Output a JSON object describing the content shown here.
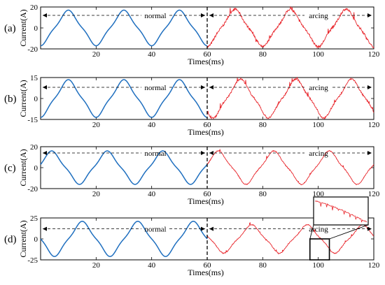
{
  "chart_data": [
    {
      "type": "line",
      "panel_label": "(a)",
      "xlabel": "Times(ms)",
      "ylabel": "Current(A)",
      "xlim": [
        0,
        120
      ],
      "ylim": [
        -20,
        20
      ],
      "xticks": [
        20,
        40,
        60,
        80,
        100,
        120
      ],
      "yticks": [
        -20,
        0,
        20
      ],
      "divider_x": 60,
      "series": [
        {
          "color": "#1f6fbf",
          "x_range": [
            0,
            60
          ],
          "amplitude": 17,
          "period": 20,
          "peak_at": 10,
          "noise": 0
        },
        {
          "color": "#e8242a",
          "x_range": [
            60,
            120
          ],
          "amplitude": 18,
          "period": 20,
          "peak_at": 70,
          "noise": 2.2
        }
      ],
      "annotations": [
        {
          "text": "normal",
          "x_from": 0,
          "x_to": 60,
          "y": 12
        },
        {
          "text": "arcing",
          "x_from": 60,
          "x_to": 120,
          "y": 12
        }
      ]
    },
    {
      "type": "line",
      "panel_label": "(b)",
      "xlabel": "Times(ms)",
      "ylabel": "Current(A)",
      "xlim": [
        0,
        120
      ],
      "ylim": [
        -15,
        15
      ],
      "xticks": [
        20,
        40,
        60,
        80,
        100,
        120
      ],
      "yticks": [
        -15,
        0,
        15
      ],
      "divider_x": 60,
      "series": [
        {
          "color": "#1f6fbf",
          "x_range": [
            0,
            60
          ],
          "amplitude": 13.5,
          "period": 20,
          "peak_at": 10,
          "noise": 0
        },
        {
          "color": "#e8242a",
          "x_range": [
            60,
            120
          ],
          "amplitude": 14,
          "period": 20,
          "peak_at": 72,
          "noise": 1.2
        }
      ],
      "annotations": [
        {
          "text": "normal",
          "x_from": 0,
          "x_to": 60,
          "y": 8
        },
        {
          "text": "arcing",
          "x_from": 60,
          "x_to": 120,
          "y": 8
        }
      ]
    },
    {
      "type": "line",
      "panel_label": "(c)",
      "xlabel": "Times(ms)",
      "ylabel": "Current(A)",
      "xlim": [
        0,
        120
      ],
      "ylim": [
        -20,
        20
      ],
      "xticks": [
        20,
        40,
        60,
        80,
        100,
        120
      ],
      "yticks": [
        -20,
        0,
        20
      ],
      "divider_x": 60,
      "series": [
        {
          "color": "#1f6fbf",
          "x_range": [
            0,
            60
          ],
          "amplitude": 16,
          "period": 20,
          "peak_at": 4,
          "noise": 0
        },
        {
          "color": "#e8242a",
          "x_range": [
            60,
            120
          ],
          "amplitude": 16,
          "period": 20,
          "peak_at": 64,
          "noise": 0.9
        }
      ],
      "annotations": [
        {
          "text": "normal",
          "x_from": 0,
          "x_to": 60,
          "y": 14
        },
        {
          "text": "arcing",
          "x_from": 60,
          "x_to": 120,
          "y": 14
        }
      ]
    },
    {
      "type": "line",
      "panel_label": "(d)",
      "xlabel": "Times(ms)",
      "ylabel": "Current(A)",
      "xlim": [
        0,
        120
      ],
      "ylim": [
        -25,
        25
      ],
      "xticks": [
        20,
        40,
        60,
        80,
        100,
        120
      ],
      "yticks": [
        -25,
        0,
        25
      ],
      "divider_x": 60,
      "series": [
        {
          "color": "#1f6fbf",
          "x_range": [
            0,
            60
          ],
          "amplitude": 21,
          "period": 20,
          "peak_at": 15,
          "noise": 0
        },
        {
          "color": "#e8242a",
          "x_range": [
            60,
            120
          ],
          "amplitude": 17,
          "period": 20,
          "peak_at": 76,
          "noise": 1.0
        }
      ],
      "annotations": [
        {
          "text": "normal",
          "x_from": 0,
          "x_to": 60,
          "y": 12
        },
        {
          "text": "arcing",
          "x_from": 60,
          "x_to": 120,
          "y": 12
        }
      ],
      "inset": {
        "zoom_x_range": [
          97,
          104
        ],
        "zoom_y_range": [
          -25,
          0
        ]
      }
    }
  ]
}
